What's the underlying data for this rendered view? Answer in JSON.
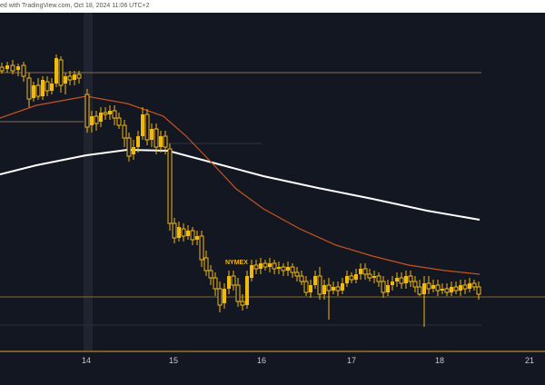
{
  "header": {
    "text": "ed with TradingView.com, Oct 18, 2024 11:06 UTC+2"
  },
  "chart": {
    "symbol": "NYMEX"
  },
  "colors": {
    "background": "#131722",
    "candle": "#f0b90b",
    "ema_fast": "#c8531c",
    "ema_slow": "#ffffff",
    "hline_upper": "#8a6a55",
    "hline_lower": "#8a6a2a",
    "axis_line": "#e0a030",
    "highlight_band": "#1f2430"
  },
  "chart_data": {
    "type": "candlestick",
    "x_tick_labels": [
      "14",
      "15",
      "16",
      "17",
      "18",
      "21"
    ],
    "series": [
      {
        "name": "",
        "kind": "candles"
      },
      {
        "name": "",
        "kind": "moving-average-fast"
      },
      {
        "name": "",
        "kind": "moving-average-slow"
      }
    ],
    "grid": false
  }
}
